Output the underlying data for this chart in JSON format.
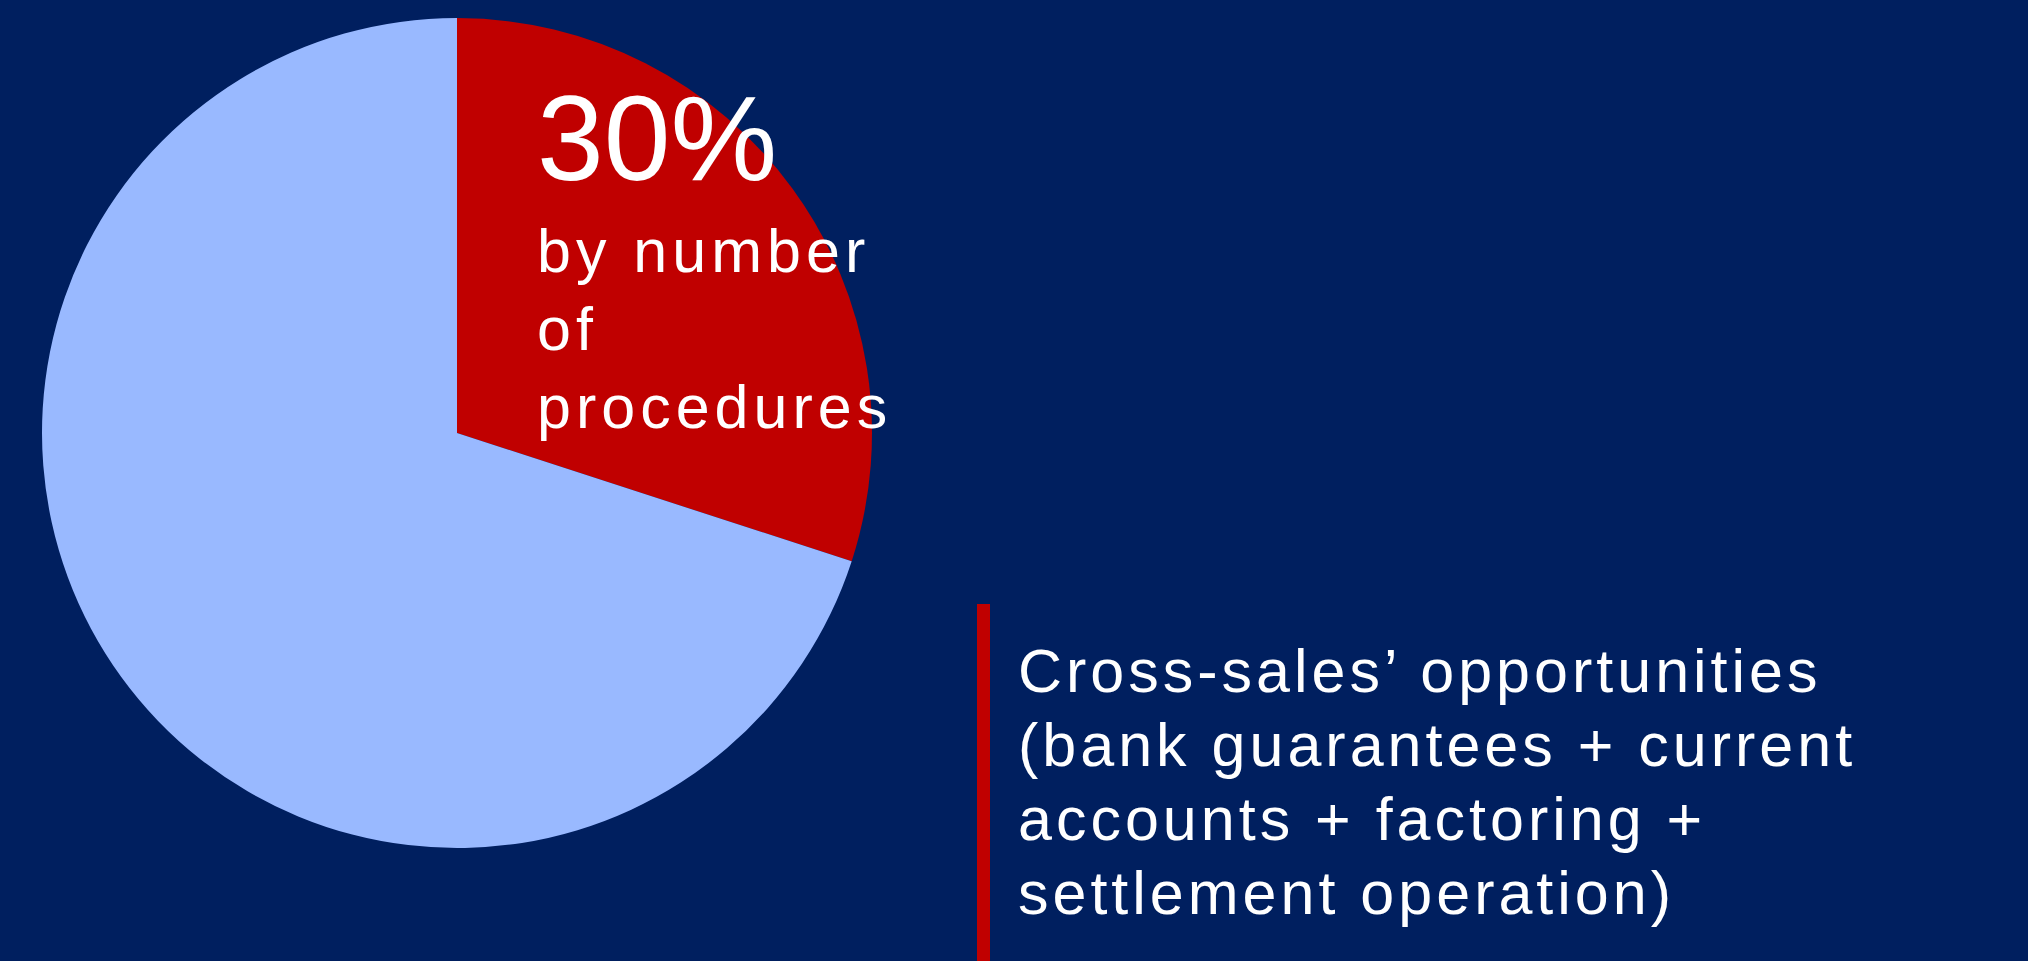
{
  "chart_data": {
    "type": "pie",
    "categories": [
      null,
      null
    ],
    "values": [
      30,
      70
    ],
    "colors": [
      "#c00000",
      "#99b9ff"
    ],
    "value_labels": [
      "30%",
      null
    ],
    "annotations": [
      "by number of procedures",
      "Cross-sales’ opportunities (bank guarantees + current accounts + factoring + settlement operation)"
    ]
  }
}
